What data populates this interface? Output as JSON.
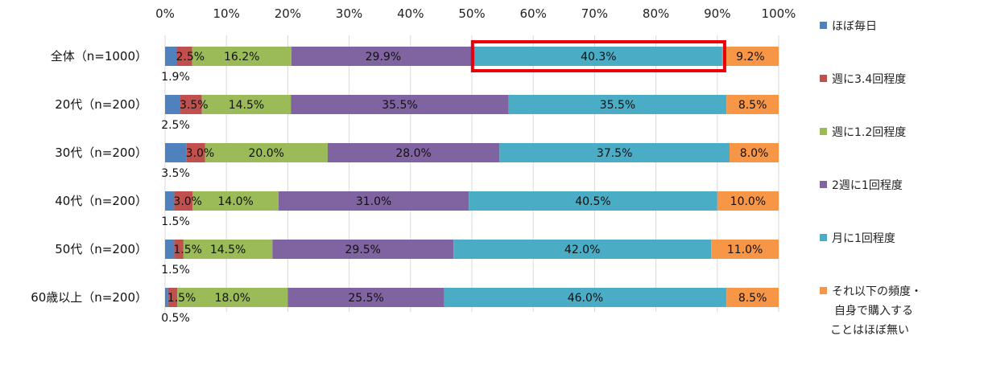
{
  "chart_data": {
    "type": "bar",
    "orientation": "horizontal",
    "stacked": "percent",
    "xlim": [
      0,
      100
    ],
    "x_ticks": [
      "0%",
      "10%",
      "20%",
      "30%",
      "40%",
      "50%",
      "60%",
      "70%",
      "80%",
      "90%",
      "100%"
    ],
    "grid": true,
    "legend_position": "right",
    "categories": [
      "全体（n=1000）",
      "20代（n=200）",
      "30代（n=200）",
      "40代（n=200）",
      "50代（n=200）",
      "60歳以上（n=200）"
    ],
    "series": [
      {
        "name": "ほぼ毎日",
        "color": "#4f81bd",
        "values": [
          1.9,
          2.5,
          3.5,
          1.5,
          1.5,
          0.5
        ],
        "labels": [
          "1.9%",
          "2.5%",
          "3.5%",
          "1.5%",
          "1.5%",
          "0.5%"
        ]
      },
      {
        "name": "週に3.4回程度",
        "color": "#c0504d",
        "values": [
          2.5,
          3.5,
          3.0,
          3.0,
          1.5,
          1.5
        ],
        "labels": [
          "2.5%",
          "3.5%",
          "3.0%",
          "3.0%",
          "1.5%",
          "1.5%"
        ]
      },
      {
        "name": "週に1.2回程度",
        "color": "#9bbb59",
        "values": [
          16.2,
          14.5,
          20.0,
          14.0,
          14.5,
          18.0
        ],
        "labels": [
          "16.2%",
          "14.5%",
          "20.0%",
          "14.0%",
          "14.5%",
          "18.0%"
        ]
      },
      {
        "name": "2週に1回程度",
        "color": "#8064a2",
        "values": [
          29.9,
          35.5,
          28.0,
          31.0,
          29.5,
          25.5
        ],
        "labels": [
          "29.9%",
          "35.5%",
          "28.0%",
          "31.0%",
          "29.5%",
          "25.5%"
        ]
      },
      {
        "name": "月に1回程度",
        "color": "#4bacc6",
        "values": [
          40.3,
          35.5,
          37.5,
          40.5,
          42.0,
          46.0
        ],
        "labels": [
          "40.3%",
          "35.5%",
          "37.5%",
          "40.5%",
          "42.0%",
          "46.0%"
        ]
      },
      {
        "name": "それ以下の頻度・自身で購入することはほぼ無い",
        "color": "#f79646",
        "values": [
          9.2,
          8.5,
          8.0,
          10.0,
          11.0,
          8.5
        ],
        "labels": [
          "9.2%",
          "8.5%",
          "8.0%",
          "10.0%",
          "11.0%",
          "8.5%"
        ]
      }
    ],
    "legend_lines": [
      [
        "ほぼ毎日"
      ],
      [
        "週に3.4回程度"
      ],
      [
        "週に1.2回程度"
      ],
      [
        "2週に1回程度"
      ],
      [
        "月に1回程度"
      ],
      [
        "それ以下の頻度・",
        "自身で購入する",
        "ことはほぼ無い"
      ]
    ],
    "highlight": {
      "category_index": 0,
      "series_index": 4,
      "color": "#e8000b"
    }
  }
}
